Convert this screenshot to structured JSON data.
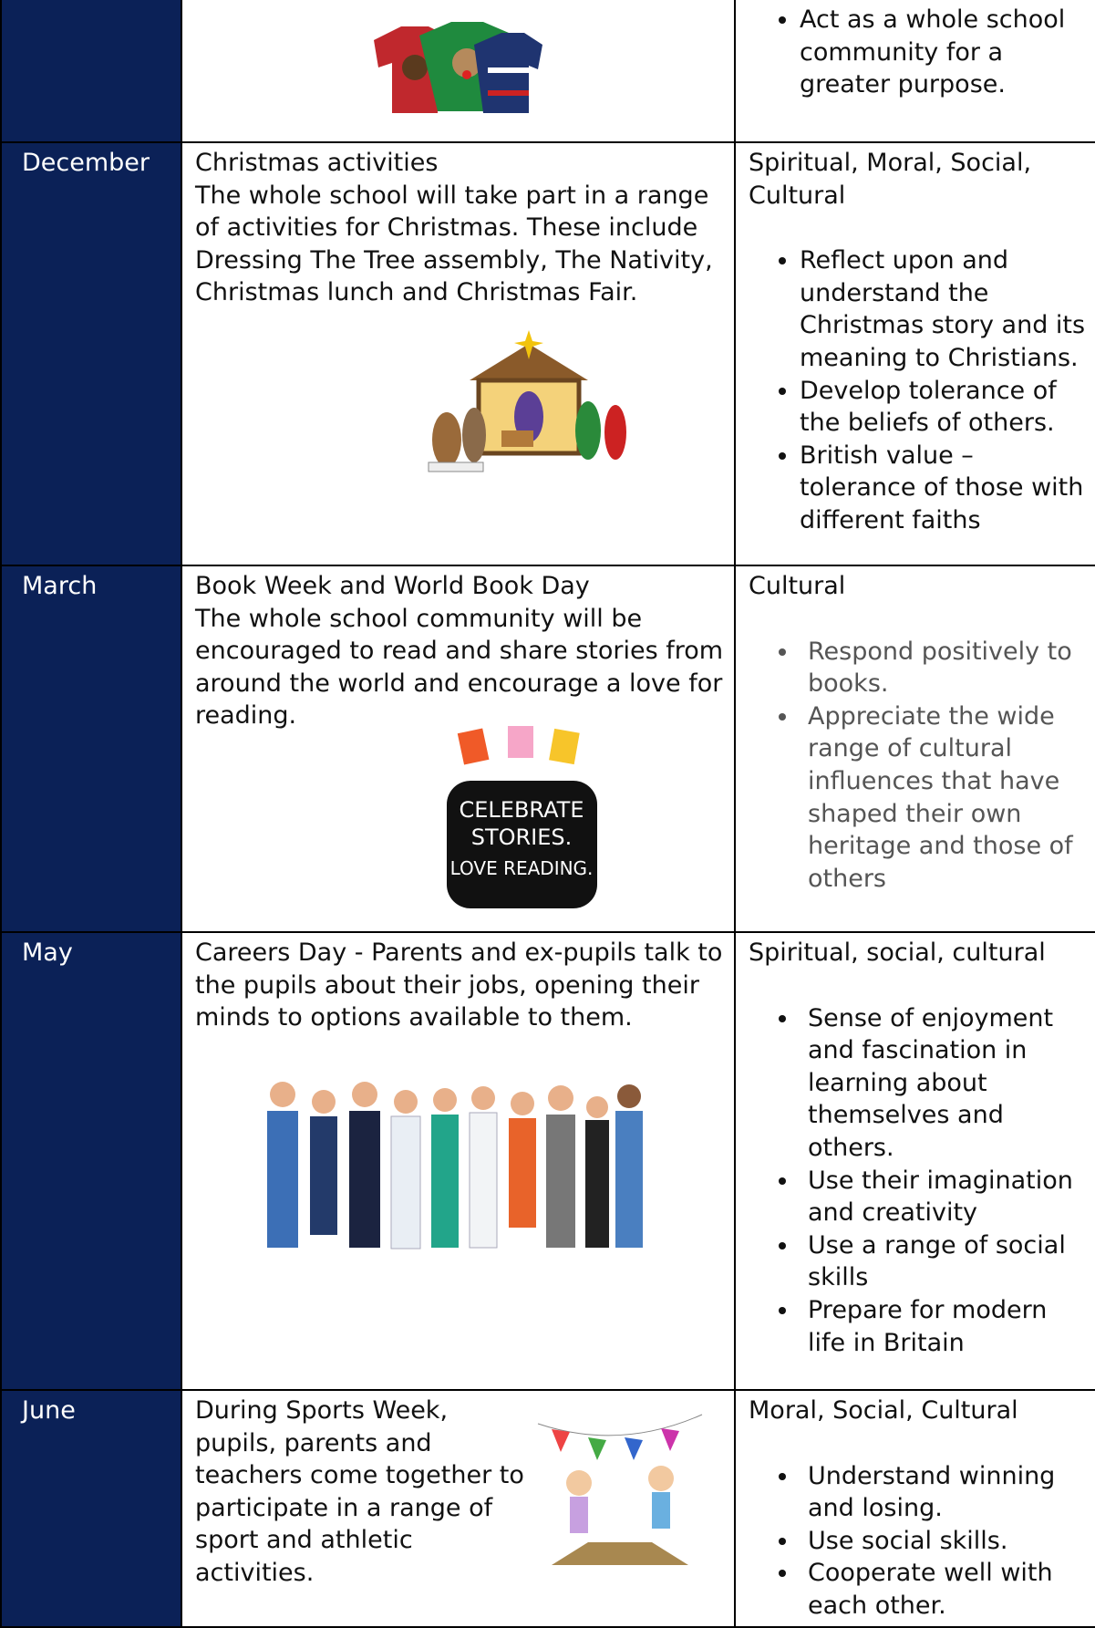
{
  "table": {
    "rows": [
      {
        "values": {
          "bullets": [
            "Act as a whole school community for a greater purpose."
          ]
        }
      },
      {
        "month": "December",
        "activity": {
          "title": "Christmas activities",
          "text": "The whole school will take part in a range of activities for Christmas. These include Dressing The Tree assembly, The Nativity, Christmas lunch and Christmas Fair."
        },
        "values": {
          "heading": "Spiritual, Moral, Social, Cultural",
          "bullets": [
            "Reflect upon and understand the Christmas story and its meaning to Christians.",
            "Develop tolerance of the beliefs of others.",
            "British value – tolerance of those with different faiths"
          ]
        }
      },
      {
        "month": "March",
        "activity": {
          "title": "Book Week and World Book Day",
          "text": "The whole school community will be encouraged to read and share stories from around the world and encourage a love for reading."
        },
        "image_text": [
          "CELEBRATE",
          "STORIES.",
          "LOVE READING."
        ],
        "values": {
          "heading": "Cultural",
          "bullets": [
            "Respond positively to books.",
            "Appreciate the wide range of cultural influences that have shaped their own heritage and those of others"
          ]
        }
      },
      {
        "month": "May",
        "activity": {
          "text": "Careers Day - Parents and ex-pupils talk to the pupils about their jobs, opening their minds to options available to them."
        },
        "values": {
          "heading": "Spiritual, social, cultural",
          "bullets": [
            "Sense of enjoyment and fascination in learning about themselves and others.",
            "Use their imagination and creativity",
            "Use a range of social skills",
            "Prepare for modern life in Britain"
          ]
        }
      },
      {
        "month": "June",
        "activity": {
          "text": "During Sports Week, pupils, parents and teachers come together to participate in a range of sport and athletic activities."
        },
        "values": {
          "heading": "Moral, Social, Cultural",
          "bullets": [
            "Understand winning and losing.",
            "Use social skills.",
            "Cooperate well with each other."
          ]
        }
      }
    ]
  }
}
